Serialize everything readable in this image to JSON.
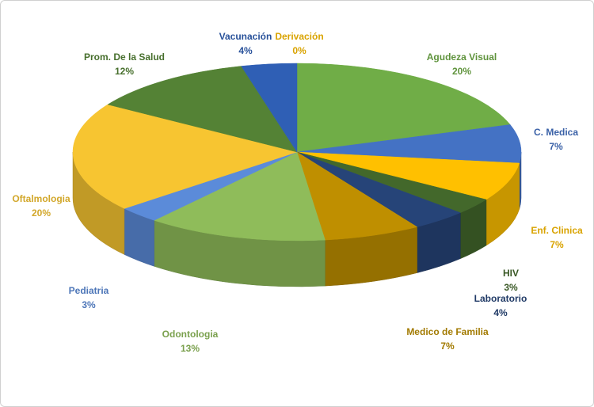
{
  "chart_data": {
    "type": "pie",
    "categories": [
      "Derivación",
      "Agudeza Visual",
      "C. Medica",
      "Enf. Clinica",
      "HIV",
      "Laboratorio",
      "Medico  de Familia",
      "Odontologia",
      "Pediatria",
      "Oftalmologia",
      "Prom. De la Salud",
      "Vacunación"
    ],
    "values": [
      0,
      20,
      7,
      7,
      3,
      4,
      7,
      13,
      3,
      20,
      12,
      4
    ],
    "value_labels": [
      "0%",
      "20%",
      "7%",
      "7%",
      "3%",
      "4%",
      "7%",
      "13%",
      "3%",
      "20%",
      "12%",
      "4%"
    ],
    "colors": [
      "#ffc000",
      "#70ad47",
      "#4472c4",
      "#ffc000",
      "#43682b",
      "#264478",
      "#bf8f00",
      "#8fbc5a",
      "#5b8bd9",
      "#f7c531",
      "#548235",
      "#2f5fb5"
    ]
  }
}
